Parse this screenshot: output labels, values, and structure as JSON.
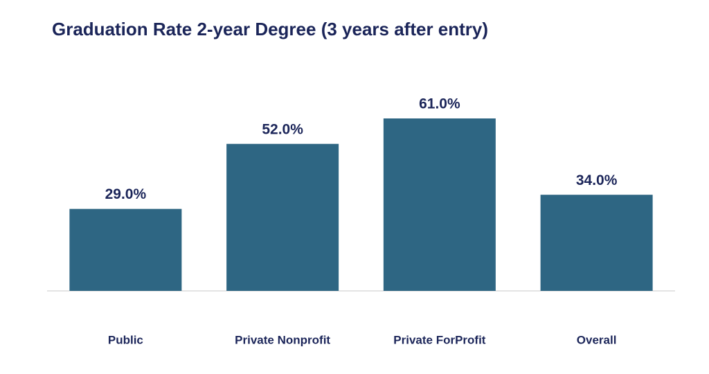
{
  "chart_data": {
    "type": "bar",
    "title": "Graduation Rate 2-year Degree (3 years after entry)",
    "categories": [
      "Public",
      "Private Nonprofit",
      "Private ForProfit",
      "Overall"
    ],
    "values": [
      29,
      52,
      61,
      34
    ],
    "value_labels": [
      "29.0%",
      "52.0%",
      "61.0%",
      "34.0%"
    ],
    "color": "#2e6683"
  }
}
